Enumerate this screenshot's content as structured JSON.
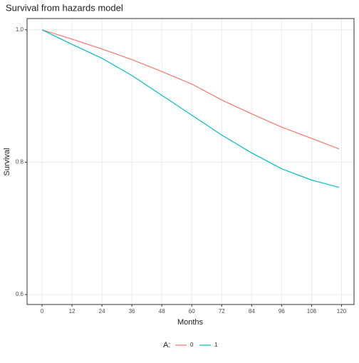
{
  "chart_data": {
    "type": "line",
    "title": "Survival from hazards model",
    "x_label": "Months",
    "y_label": "Survival",
    "x": [
      0,
      12,
      24,
      36,
      48,
      60,
      72,
      84,
      96,
      108,
      119
    ],
    "series": [
      {
        "name": "0",
        "color": "#F8766D",
        "values": [
          1.0,
          0.986,
          0.971,
          0.955,
          0.937,
          0.918,
          0.894,
          0.873,
          0.853,
          0.836,
          0.82
        ]
      },
      {
        "name": "1",
        "color": "#00BFC4",
        "values": [
          1.0,
          0.978,
          0.957,
          0.931,
          0.901,
          0.871,
          0.841,
          0.814,
          0.79,
          0.773,
          0.762
        ]
      }
    ],
    "legend_title": "A:",
    "legend_position": "bottom",
    "xlim": [
      -6,
      125
    ],
    "xticks": [
      0,
      12,
      24,
      36,
      48,
      60,
      72,
      84,
      96,
      108,
      120
    ],
    "ylim": [
      0.585,
      1.017
    ],
    "yticks": [
      {
        "value": 0.6,
        "label": "0.6"
      },
      {
        "value": 0.8,
        "label": "0.8"
      },
      {
        "value": 1.0,
        "label": "1.0"
      }
    ],
    "grid": true
  }
}
